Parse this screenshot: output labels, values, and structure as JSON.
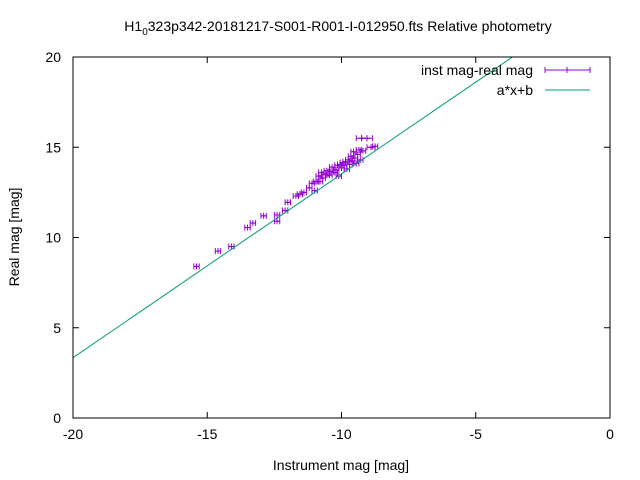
{
  "chart_data": {
    "type": "scatter",
    "title": {
      "prefix": "H1",
      "subscript": "0",
      "suffix": "323p342-20181217-S001-R001-I-012950.fts Relative photometry"
    },
    "xlabel": "Instrument mag [mag]",
    "ylabel": "Real mag [mag]",
    "xlim": [
      -20,
      0
    ],
    "ylim": [
      0,
      20
    ],
    "xticks": [
      -20,
      -15,
      -10,
      -5,
      0
    ],
    "yticks": [
      0,
      5,
      10,
      15,
      20
    ],
    "grid": false,
    "legend_position": "top-right",
    "series": [
      {
        "name": "inst mag-real mag",
        "kind": "points-with-x-errorbars",
        "color": "#9400d3",
        "points": [
          [
            -15.4,
            8.4,
            0.1
          ],
          [
            -14.6,
            9.25,
            0.1
          ],
          [
            -14.1,
            9.5,
            0.1
          ],
          [
            -13.5,
            10.55,
            0.1
          ],
          [
            -13.3,
            10.8,
            0.1
          ],
          [
            -12.9,
            11.2,
            0.1
          ],
          [
            -12.4,
            10.9,
            0.1
          ],
          [
            -12.4,
            11.25,
            0.1
          ],
          [
            -12.1,
            11.5,
            0.1
          ],
          [
            -12.0,
            11.95,
            0.1
          ],
          [
            -11.7,
            12.3,
            0.1
          ],
          [
            -11.55,
            12.4,
            0.1
          ],
          [
            -11.4,
            12.5,
            0.1
          ],
          [
            -11.2,
            12.75,
            0.1
          ],
          [
            -11.1,
            13.0,
            0.1
          ],
          [
            -11.0,
            12.6,
            0.1
          ],
          [
            -10.95,
            13.1,
            0.1
          ],
          [
            -10.85,
            13.4,
            0.1
          ],
          [
            -10.8,
            13.1,
            0.1
          ],
          [
            -10.75,
            13.6,
            0.1
          ],
          [
            -10.7,
            13.3,
            0.1
          ],
          [
            -10.6,
            13.5,
            0.1
          ],
          [
            -10.55,
            13.7,
            0.1
          ],
          [
            -10.45,
            13.45,
            0.1
          ],
          [
            -10.4,
            13.65,
            0.1
          ],
          [
            -10.35,
            13.9,
            0.1
          ],
          [
            -10.25,
            13.6,
            0.1
          ],
          [
            -10.2,
            13.75,
            0.1
          ],
          [
            -10.15,
            14.0,
            0.1
          ],
          [
            -10.1,
            13.4,
            0.1
          ],
          [
            -10.05,
            14.05,
            0.1
          ],
          [
            -10.0,
            13.85,
            0.1
          ],
          [
            -9.95,
            14.15,
            0.1
          ],
          [
            -9.9,
            14.0,
            0.1
          ],
          [
            -9.85,
            14.2,
            0.1
          ],
          [
            -9.8,
            13.8,
            0.1
          ],
          [
            -9.75,
            14.3,
            0.1
          ],
          [
            -9.7,
            14.05,
            0.1
          ],
          [
            -9.65,
            14.5,
            0.1
          ],
          [
            -9.6,
            14.25,
            0.1
          ],
          [
            -9.55,
            14.75,
            0.1
          ],
          [
            -9.5,
            14.4,
            0.1
          ],
          [
            -9.45,
            14.1,
            0.1
          ],
          [
            -9.4,
            14.6,
            0.1
          ],
          [
            -9.35,
            14.85,
            0.1
          ],
          [
            -9.3,
            14.3,
            0.1
          ],
          [
            -9.25,
            15.5,
            0.2
          ],
          [
            -9.2,
            14.8,
            0.1
          ],
          [
            -9.05,
            15.5,
            0.2
          ],
          [
            -8.9,
            15.0,
            0.15
          ],
          [
            -8.75,
            15.05,
            0.1
          ]
        ]
      },
      {
        "name": "a*x+b",
        "kind": "line",
        "color": "#009e73",
        "slope": 1.018,
        "intercept": 23.7
      }
    ]
  }
}
